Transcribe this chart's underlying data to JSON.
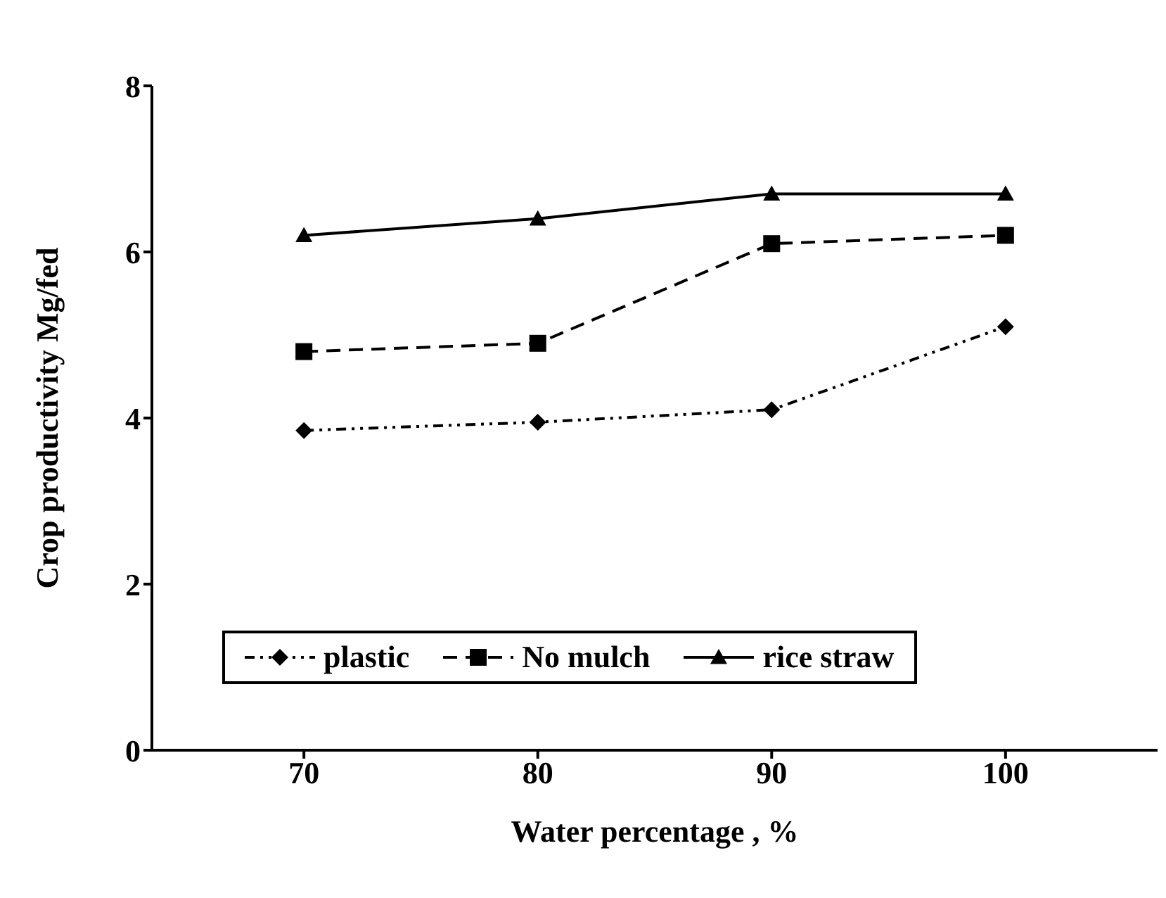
{
  "chart_data": {
    "type": "line",
    "xlabel": "Water percentage , %",
    "ylabel": "Crop productivity Mg/fed",
    "categories": [
      "70",
      "80",
      "90",
      "100"
    ],
    "series": [
      {
        "name": "plastic",
        "color": "#000000",
        "values": [
          3.85,
          3.95,
          4.1,
          5.1
        ],
        "marker": "diamond",
        "line_style": "dotted"
      },
      {
        "name": "No mulch",
        "color": "#000000",
        "values": [
          4.8,
          4.9,
          6.1,
          6.2
        ],
        "marker": "square",
        "line_style": "dashed"
      },
      {
        "name": "rice straw",
        "color": "#000000",
        "values": [
          6.2,
          6.4,
          6.7,
          6.7
        ],
        "marker": "triangle",
        "line_style": "solid"
      }
    ],
    "ylim": [
      0,
      8
    ],
    "yticks": [
      0,
      2,
      4,
      6,
      8
    ],
    "grid": false,
    "legend": "bottom"
  }
}
